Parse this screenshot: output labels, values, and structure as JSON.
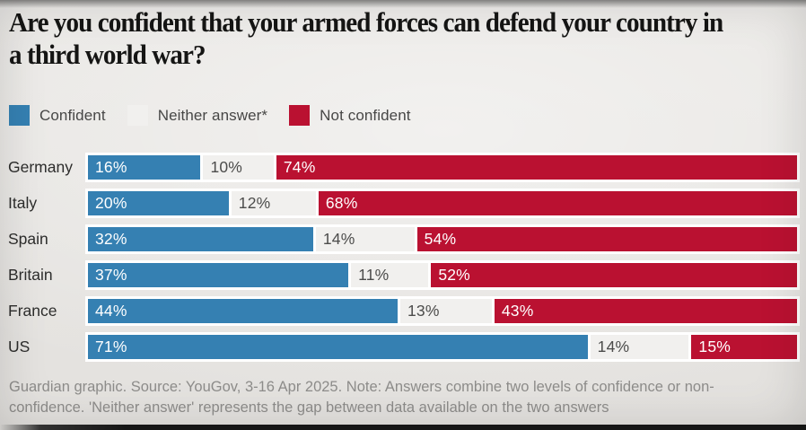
{
  "title": {
    "line1": "Are you confident that your armed forces can defend your country in",
    "line2": "a third world war?"
  },
  "legend": [
    {
      "label": "Confident",
      "color": "#3580b2"
    },
    {
      "label": "Neither answer*",
      "color": "#f1f0ee"
    },
    {
      "label": "Not confident",
      "color": "#ba1131"
    }
  ],
  "chart_data": {
    "type": "bar",
    "orientation": "horizontal",
    "stacked": true,
    "unit": "%",
    "xlim": [
      0,
      100
    ],
    "grid": false,
    "legend_position": "top",
    "categories": [
      "Germany",
      "Italy",
      "Spain",
      "Britain",
      "France",
      "US"
    ],
    "series": [
      {
        "name": "Confident",
        "color": "#3580b2",
        "label_color": "#ffffff",
        "values": [
          16,
          20,
          32,
          37,
          44,
          71
        ]
      },
      {
        "name": "Neither answer*",
        "color": "#f1f0ee",
        "label_color": "#4c4c4b",
        "values": [
          10,
          12,
          14,
          11,
          13,
          14
        ]
      },
      {
        "name": "Not confident",
        "color": "#ba1131",
        "label_color": "#ffffff",
        "values": [
          74,
          68,
          54,
          52,
          43,
          15
        ]
      }
    ],
    "value_label_suffix": "%"
  },
  "footer": {
    "text": "Guardian graphic. Source: YouGov, 3-16 Apr 2025. Note: Answers combine two levels of confidence or non-confidence. 'Neither answer' represents the gap between data available on the two answers"
  }
}
